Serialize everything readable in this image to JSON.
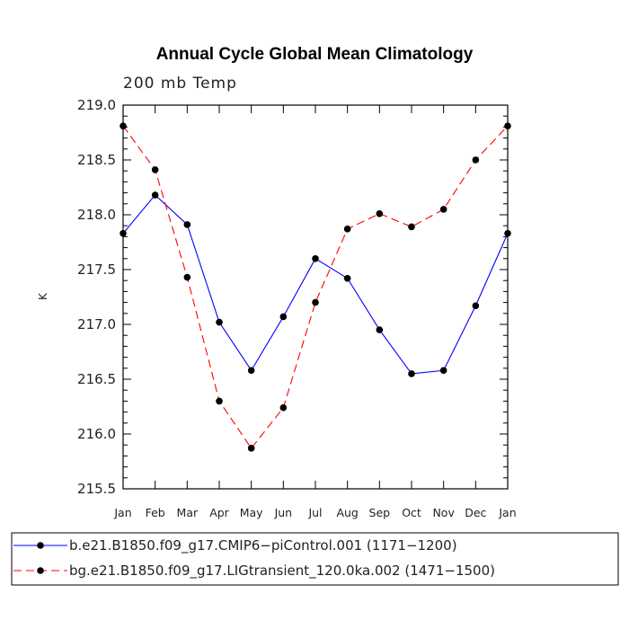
{
  "chart_data": {
    "type": "line",
    "title": "Annual Cycle Global Mean Climatology",
    "subtitle": "200 mb Temp",
    "xlabel": "",
    "ylabel": "K",
    "categories": [
      "Jan",
      "Feb",
      "Mar",
      "Apr",
      "May",
      "Jun",
      "Jul",
      "Aug",
      "Sep",
      "Oct",
      "Nov",
      "Dec",
      "Jan"
    ],
    "ylim": [
      215.5,
      219.0
    ],
    "yticks": [
      "215.5",
      "216.0",
      "216.5",
      "217.0",
      "217.5",
      "218.0",
      "218.5",
      "219.0"
    ],
    "ytick_values": [
      215.5,
      216.0,
      216.5,
      217.0,
      217.5,
      218.0,
      218.5,
      219.0
    ],
    "yminor_step": 0.1,
    "grid": false,
    "legend_position": "bottom",
    "series": [
      {
        "name": "b.e21.B1850.f09_g17.CMIP6−piControl.001 (1171−1200)",
        "color": "#0000ff",
        "dash": "solid",
        "values": [
          217.83,
          218.18,
          217.91,
          217.02,
          216.58,
          217.07,
          217.6,
          217.42,
          216.95,
          216.55,
          216.58,
          217.17,
          217.83
        ]
      },
      {
        "name": "bg.e21.B1850.f09_g17.LIGtransient_120.0ka.002 (1471−1500)",
        "color": "#ff0000",
        "dash": "dashed",
        "values": [
          218.81,
          218.41,
          217.43,
          216.3,
          215.87,
          216.24,
          217.2,
          217.87,
          218.01,
          217.89,
          218.05,
          218.5,
          218.81
        ]
      }
    ]
  }
}
